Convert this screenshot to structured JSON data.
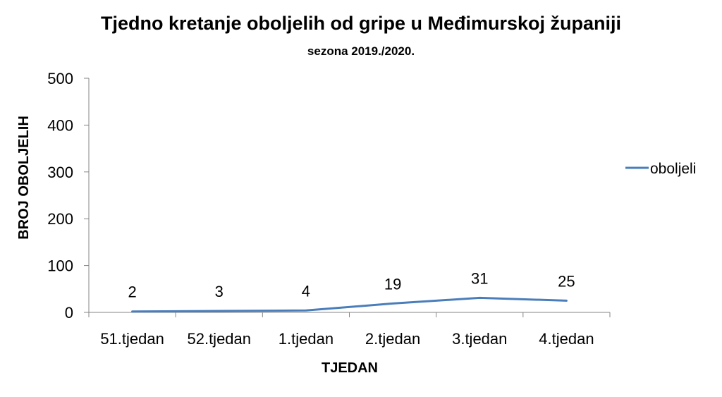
{
  "chart_data": {
    "type": "line",
    "title": "Tjedno kretanje oboljelih od gripe u Međimurskoj županiji",
    "subtitle": "sezona 2019./2020.",
    "xlabel": "TJEDAN",
    "ylabel": "BROJ OBOLJELIH",
    "categories": [
      "51.tjedan",
      "52.tjedan",
      "1.tjedan",
      "2.tjedan",
      "3.tjedan",
      "4.tjedan"
    ],
    "series": [
      {
        "name": "oboljeli",
        "values": [
          2,
          3,
          4,
          19,
          31,
          25
        ],
        "color": "#4a7ebb"
      }
    ],
    "ylim": [
      0,
      500
    ],
    "yticks": [
      "0",
      "100",
      "200",
      "300",
      "400",
      "500"
    ],
    "data_labels": [
      "2",
      "3",
      "4",
      "19",
      "31",
      "25"
    ],
    "legend": "right",
    "grid": false
  }
}
